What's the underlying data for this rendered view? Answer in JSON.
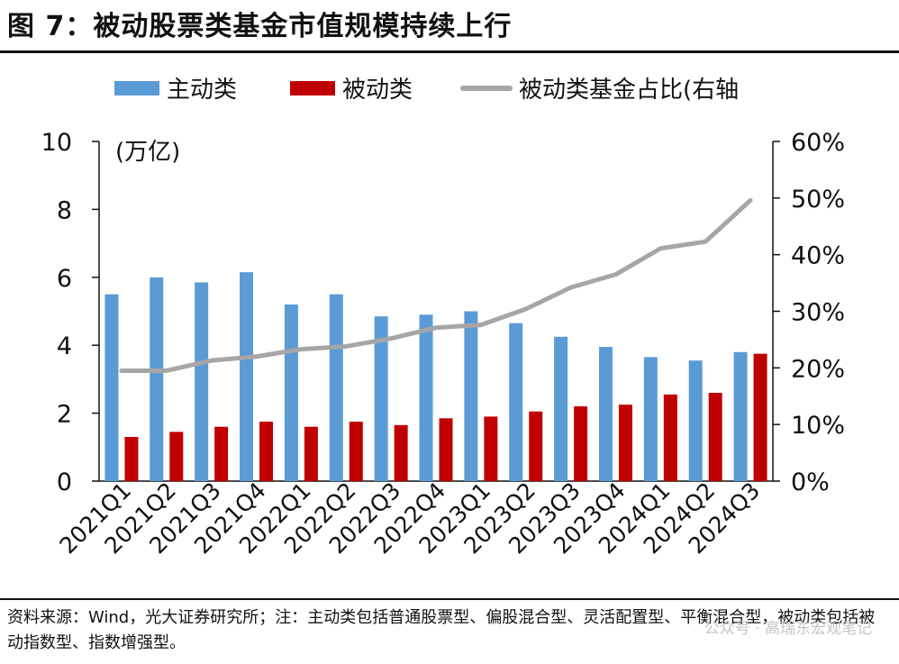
{
  "title": "图 7：被动股票类基金市值规模持续上行",
  "source_note": "资料来源：Wind，光大证券研究所；注：主动类包括普通股票型、偏股混合型、灵活配置型、平衡混合型，被动类包括被动指数型、指数增强型。",
  "watermark": "公众号 · 高瑞东宏观笔记",
  "chart_data": {
    "type": "bar",
    "categories": [
      "2021Q1",
      "2021Q2",
      "2021Q3",
      "2021Q4",
      "2022Q1",
      "2022Q2",
      "2022Q3",
      "2022Q4",
      "2023Q1",
      "2023Q2",
      "2023Q3",
      "2023Q4",
      "2024Q1",
      "2024Q2",
      "2024Q3"
    ],
    "series": [
      {
        "name": "主动类",
        "type": "bar",
        "axis": "left",
        "color": "#5b9bd5",
        "values": [
          5.5,
          6.0,
          5.85,
          6.15,
          5.2,
          5.5,
          4.85,
          4.9,
          5.0,
          4.65,
          4.25,
          3.95,
          3.65,
          3.55,
          3.8
        ]
      },
      {
        "name": "被动类",
        "type": "bar",
        "axis": "left",
        "color": "#c00000",
        "values": [
          1.3,
          1.45,
          1.6,
          1.75,
          1.6,
          1.75,
          1.65,
          1.85,
          1.9,
          2.05,
          2.2,
          2.25,
          2.55,
          2.6,
          3.75
        ]
      },
      {
        "name": "被动类基金占比(右轴",
        "type": "line",
        "axis": "right",
        "color": "#a6a6a6",
        "values": [
          19.5,
          19.5,
          21.3,
          22.0,
          23.3,
          23.8,
          25.2,
          27.1,
          27.6,
          30.4,
          34.2,
          36.5,
          41.1,
          42.3,
          49.6
        ]
      }
    ],
    "y_left": {
      "unit_label": "(万亿)",
      "min": 0,
      "max": 10,
      "ticks": [
        "0",
        "2",
        "4",
        "6",
        "8",
        "10"
      ]
    },
    "y_right": {
      "min": 0,
      "max": 60,
      "ticks": [
        "0%",
        "10%",
        "20%",
        "30%",
        "40%",
        "50%",
        "60%"
      ]
    },
    "grid": false,
    "legend_position": "top"
  }
}
